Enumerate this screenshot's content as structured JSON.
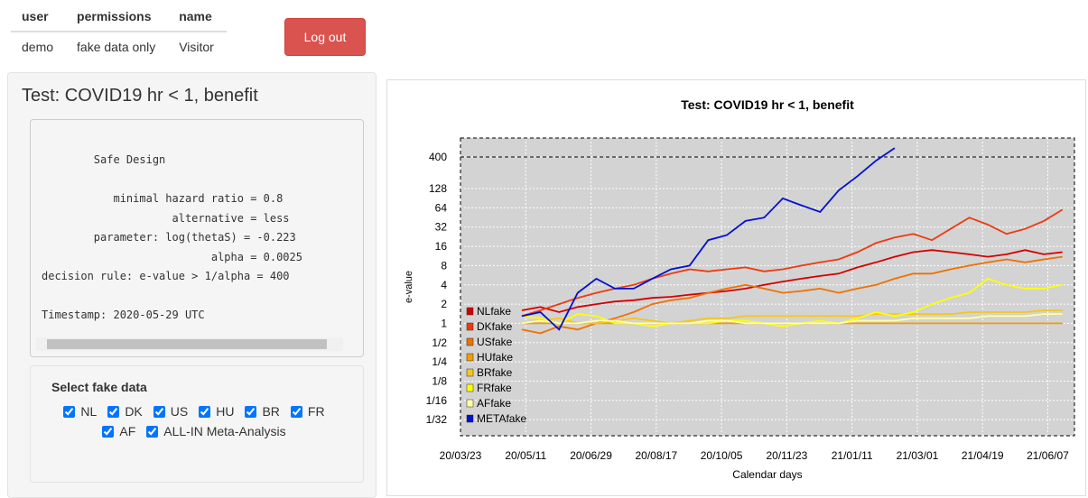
{
  "user_table": {
    "headers": [
      "user",
      "permissions",
      "name"
    ],
    "rows": [
      [
        "demo",
        "fake data only",
        "Visitor"
      ]
    ]
  },
  "logout_button": "Log out",
  "sidebar": {
    "title": "Test: COVID19 hr < 1, benefit",
    "design_lines": [
      "        Safe Design",
      "",
      "           minimal hazard ratio = 0.8",
      "                    alternative = less",
      "        parameter: log(thetaS) = -0.223",
      "                          alpha = 0.0025",
      "decision rule: e-value > 1/alpha = 400",
      "",
      "Timestamp: 2020-05-29 UTC"
    ],
    "select_title": "Select fake data",
    "options": [
      {
        "label": "NL",
        "checked": true
      },
      {
        "label": "DK",
        "checked": true
      },
      {
        "label": "US",
        "checked": true
      },
      {
        "label": "HU",
        "checked": true
      },
      {
        "label": "BR",
        "checked": true
      },
      {
        "label": "FR",
        "checked": true
      },
      {
        "label": "AF",
        "checked": true
      },
      {
        "label": "ALL-IN Meta-Analysis",
        "checked": true
      }
    ]
  },
  "chart_data": {
    "type": "line",
    "title": "Test: COVID19 hr < 1, benefit",
    "x_label": "Calendar days",
    "y_label": "e-value",
    "log_scale_y": true,
    "grid": true,
    "legend_position": "lower-left",
    "threshold": 400,
    "xlim": [
      "20/03/23",
      "21/06/27"
    ],
    "xticks": [
      "20/03/23",
      "20/05/11",
      "20/06/29",
      "20/08/17",
      "20/10/05",
      "20/11/23",
      "21/01/11",
      "21/03/01",
      "21/04/19",
      "21/06/07"
    ],
    "ylim": [
      0.0175,
      790
    ],
    "yticks": [
      {
        "value": 0.03125,
        "label": "1/32"
      },
      {
        "value": 0.0625,
        "label": "1/16"
      },
      {
        "value": 0.125,
        "label": "1/8"
      },
      {
        "value": 0.25,
        "label": "1/4"
      },
      {
        "value": 0.5,
        "label": "1/2"
      },
      1,
      2,
      4,
      8,
      16,
      32,
      64,
      128,
      400
    ],
    "x": [
      "20/05/08",
      "20/05/22",
      "20/06/05",
      "20/06/19",
      "20/07/03",
      "20/07/17",
      "20/07/31",
      "20/08/14",
      "20/08/28",
      "20/09/11",
      "20/09/25",
      "20/10/09",
      "20/10/23",
      "20/11/06",
      "20/11/20",
      "20/12/04",
      "20/12/18",
      "21/01/01",
      "21/01/15",
      "21/01/29",
      "21/02/12",
      "21/02/26",
      "21/03/12",
      "21/03/26",
      "21/04/09",
      "21/04/23",
      "21/05/07",
      "21/05/21",
      "21/06/04",
      "21/06/18"
    ],
    "series": [
      {
        "name": "NLfake",
        "color": "#d40000",
        "values": [
          1.6,
          1.8,
          1.5,
          1.8,
          2,
          2.2,
          2.3,
          2.5,
          2.6,
          2.8,
          3,
          3.2,
          3.5,
          4,
          4.5,
          5,
          5.5,
          6,
          7.5,
          9,
          11,
          13,
          14,
          13,
          12,
          11,
          12,
          14,
          12,
          13
        ]
      },
      {
        "name": "DKfake",
        "color": "#ee3a10",
        "values": [
          1.3,
          1.6,
          2,
          2.5,
          3,
          3.5,
          4,
          5,
          6,
          7,
          6.5,
          7,
          7.5,
          6.5,
          7,
          8,
          9,
          10,
          13,
          18,
          22,
          25,
          20,
          30,
          45,
          35,
          25,
          30,
          40,
          60
        ]
      },
      {
        "name": "USfake",
        "color": "#f07000",
        "values": [
          0.8,
          0.7,
          0.9,
          0.8,
          1,
          1.2,
          1.5,
          2,
          2.3,
          2.5,
          3,
          3.5,
          4,
          3.5,
          3,
          3.2,
          3.5,
          3,
          3.5,
          4,
          5,
          6,
          6,
          7,
          8,
          9,
          10,
          9,
          10,
          11
        ]
      },
      {
        "name": "HUfake",
        "color": "#f39c00",
        "values": [
          1,
          1,
          1,
          1,
          1,
          1,
          1,
          1,
          1,
          1,
          1,
          1,
          1,
          1,
          1,
          1,
          1,
          1,
          1,
          1,
          1,
          1,
          1,
          1,
          1,
          1,
          1,
          1,
          1,
          1
        ]
      },
      {
        "name": "BRfake",
        "color": "#f6c61a",
        "values": [
          1,
          1.1,
          1.2,
          1,
          1,
          1.1,
          1.2,
          1.1,
          1,
          1.1,
          1.2,
          1.2,
          1.3,
          1.3,
          1.3,
          1.3,
          1.3,
          1.3,
          1.3,
          1.4,
          1.4,
          1.4,
          1.4,
          1.4,
          1.5,
          1.5,
          1.5,
          1.5,
          1.6,
          1.6
        ]
      },
      {
        "name": "FRfake",
        "color": "#ffff00",
        "values": [
          1.3,
          1.2,
          1,
          1.4,
          1.3,
          1,
          1,
          0.9,
          1,
          1,
          1,
          1.1,
          1.1,
          1,
          0.9,
          1,
          1.1,
          1,
          1.2,
          1.5,
          1.3,
          1.5,
          2,
          2.5,
          3,
          5,
          4,
          3.5,
          3.5,
          4
        ]
      },
      {
        "name": "AFfake",
        "color": "#ffffa8",
        "values": [
          1,
          1.1,
          1,
          1,
          1.1,
          1.1,
          1,
          1,
          1,
          1,
          1.1,
          1.1,
          1,
          1,
          1,
          1,
          1,
          1,
          1.1,
          1.1,
          1.1,
          1.2,
          1.2,
          1.2,
          1.2,
          1.3,
          1.3,
          1.3,
          1.4,
          1.4
        ]
      },
      {
        "name": "METAfake",
        "color": "#0010d0",
        "values": [
          1.3,
          1.5,
          0.8,
          3,
          5,
          3.5,
          3.5,
          5,
          7,
          8,
          20,
          24,
          40,
          45,
          90,
          70,
          55,
          120,
          200,
          350,
          550,
          null,
          null,
          null,
          null,
          null,
          null,
          null,
          null,
          null
        ]
      }
    ]
  }
}
